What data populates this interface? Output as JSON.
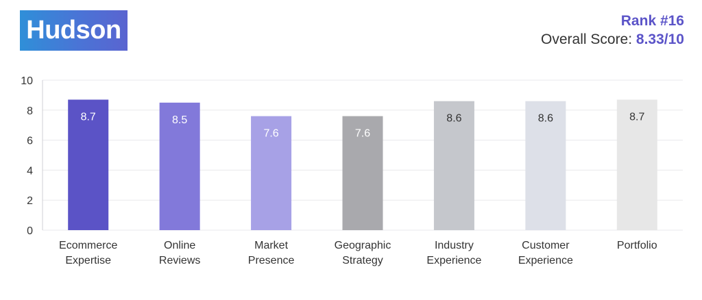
{
  "brand": {
    "logo_text": "Hudson"
  },
  "header": {
    "rank": "Rank #16",
    "overall_label": "Overall Score: ",
    "overall_value": "8.33/10"
  },
  "colors": {
    "accent": "#5b54c8",
    "text": "#333333",
    "grid": "#e8e8ec"
  },
  "chart_data": {
    "type": "bar",
    "categories": [
      [
        "Ecommerce",
        "Expertise"
      ],
      [
        "Online",
        "Reviews"
      ],
      [
        "Market",
        "Presence"
      ],
      [
        "Geographic",
        "Strategy"
      ],
      [
        "Industry",
        "Experience"
      ],
      [
        "Customer",
        "Experience"
      ],
      [
        "Portfolio"
      ]
    ],
    "values": [
      8.7,
      8.5,
      7.6,
      7.6,
      8.6,
      8.6,
      8.7
    ],
    "value_labels": [
      "8.7",
      "8.5",
      "7.6",
      "7.6",
      "8.6",
      "8.6",
      "8.7"
    ],
    "bar_colors": [
      "#5b53c6",
      "#8279da",
      "#a7a1e6",
      "#a9a9ad",
      "#c5c7cc",
      "#dde0e8",
      "#e7e7e7"
    ],
    "label_colors": [
      "#ffffff",
      "#ffffff",
      "#ffffff",
      "#ffffff",
      "#333333",
      "#333333",
      "#333333"
    ],
    "ylim": [
      0,
      10
    ],
    "yticks": [
      0,
      2,
      4,
      6,
      8,
      10
    ],
    "title": "",
    "xlabel": "",
    "ylabel": "",
    "grid": true
  }
}
